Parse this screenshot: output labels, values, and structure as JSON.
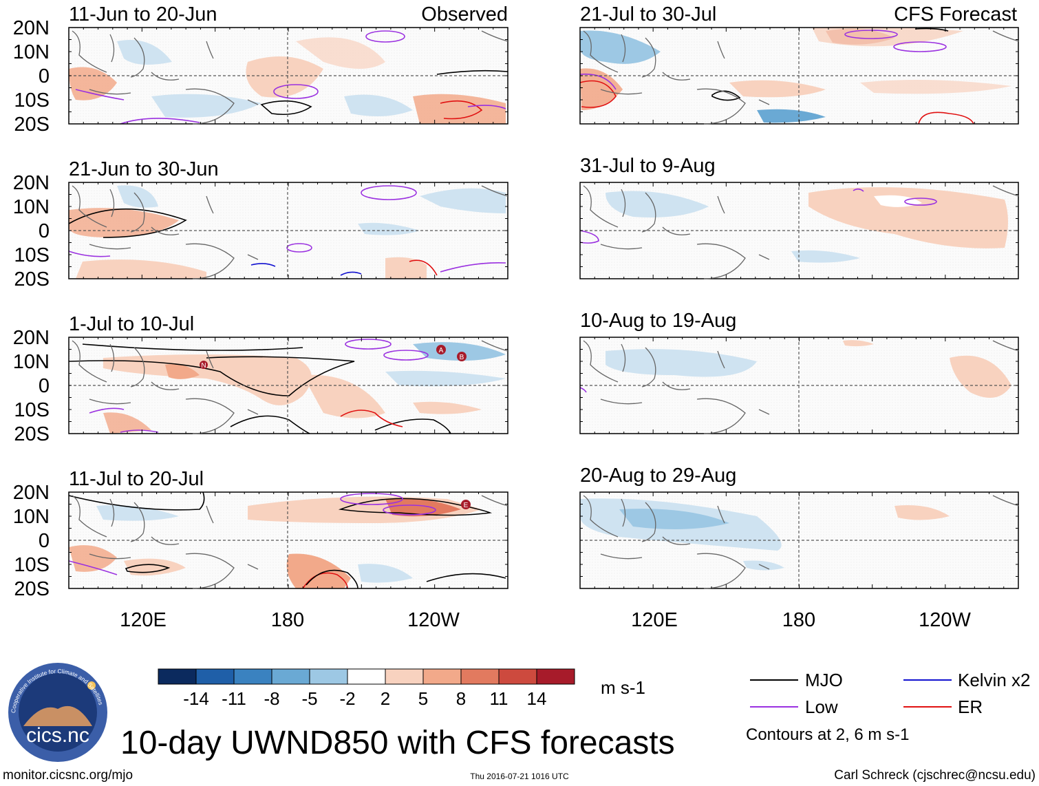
{
  "title": "10-day UWND850 with CFS forecasts",
  "columns": {
    "left_label": "Observed",
    "right_label": "CFS Forecast"
  },
  "panels_left": [
    {
      "period": "11-Jun to 20-Jun"
    },
    {
      "period": "21-Jun to 30-Jun"
    },
    {
      "period": "1-Jul to 10-Jul"
    },
    {
      "period": "11-Jul to 20-Jul"
    }
  ],
  "panels_right": [
    {
      "period": "21-Jul to 30-Jul"
    },
    {
      "period": "31-Jul to 9-Aug"
    },
    {
      "period": "10-Aug to 19-Aug"
    },
    {
      "period": "20-Aug to 29-Aug"
    }
  ],
  "lat_labels": [
    "20N",
    "10N",
    "0",
    "10S",
    "20S"
  ],
  "lon_labels": [
    "120E",
    "180",
    "120W"
  ],
  "colorbar": {
    "unit": "m s-1",
    "ticks": [
      "-14",
      "-11",
      "-8",
      "-5",
      "-2",
      "2",
      "5",
      "8",
      "11",
      "14"
    ],
    "colors": [
      "#0b2a5e",
      "#1f5fa8",
      "#3a82c0",
      "#6aa9d4",
      "#9dc8e4",
      "#cfe3f1",
      "#ffffff",
      "#f8d2bf",
      "#f2a98a",
      "#e27a5f",
      "#cd4a3e",
      "#a71b2a",
      "#6a0a1a"
    ]
  },
  "legend": {
    "items": [
      {
        "label": "MJO",
        "color": "#000000"
      },
      {
        "label": "Kelvin x2",
        "color": "#1010d0"
      },
      {
        "label": "Low",
        "color": "#9a30e0"
      },
      {
        "label": "ER",
        "color": "#e01010"
      }
    ],
    "note": "Contours at 2, 6 m s-1"
  },
  "logo": {
    "text": "cics.nc",
    "ring_text": "Cooperative Institute for Climate and Satellites"
  },
  "footer": {
    "left": "monitor.cicsnc.org/mjo",
    "center": "Thu 2016-07-21 1016 UTC",
    "right": "Carl Schreck (cjschrec@ncsu.edu)"
  },
  "tc_markers": [
    "N",
    "A",
    "B",
    "E"
  ]
}
